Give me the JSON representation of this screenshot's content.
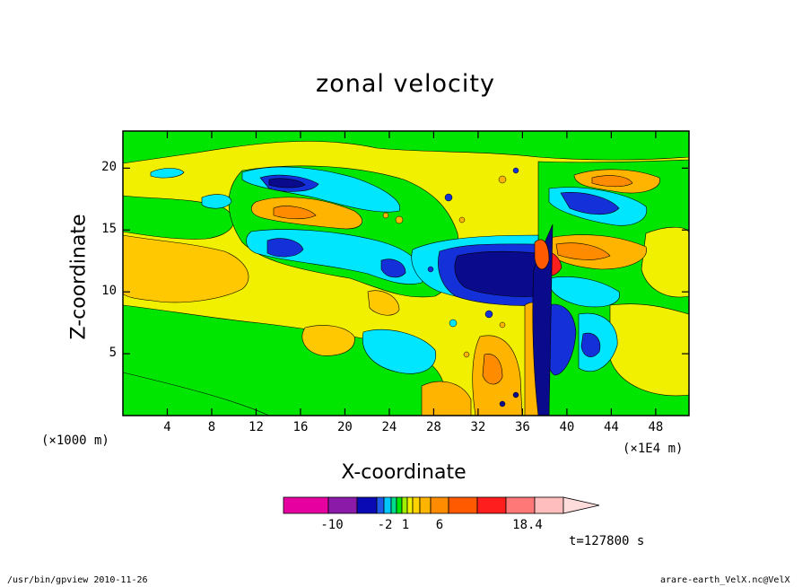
{
  "chart_data": {
    "type": "heatmap",
    "title": "zonal velocity",
    "xlabel": "X-coordinate",
    "ylabel": "Z-coordinate",
    "x_unit_left": "(×1000 m)",
    "x_unit_right": "(×1E4 m)",
    "x_ticks": [
      "4",
      "8",
      "12",
      "16",
      "20",
      "24",
      "28",
      "32",
      "36",
      "40",
      "44",
      "48"
    ],
    "x_tick_values": [
      4,
      8,
      12,
      16,
      20,
      24,
      28,
      32,
      36,
      40,
      44,
      48
    ],
    "xlim": [
      0,
      51
    ],
    "y_ticks": [
      "5",
      "10",
      "15",
      "20"
    ],
    "y_tick_values": [
      5,
      10,
      15,
      20
    ],
    "ylim": [
      0,
      23
    ],
    "colorbar": {
      "labels": [
        "-10",
        "-2",
        "1",
        "6",
        "18.4"
      ],
      "label_values": [
        -10,
        -2,
        1,
        6,
        18.4
      ],
      "colors": [
        "#e600a0",
        "#8c1aa8",
        "#0a0ab4",
        "#1e5ae6",
        "#00c8ff",
        "#00dc8c",
        "#00e600",
        "#a0f000",
        "#f0f000",
        "#ffd200",
        "#ffb400",
        "#ff8c00",
        "#ff5a00",
        "#ff1e1e",
        "#ff7878",
        "#ffbebe",
        "#ffdcdc"
      ]
    },
    "time_label": "t=127800 s"
  },
  "colors": {
    "background_level": "#f0f000",
    "green": "#00e600",
    "cyan": "#00e6ff",
    "blue": "#1430d8",
    "navy": "#0a0a8c",
    "orange": "#ffb400",
    "orange_dark": "#ff8c00",
    "red": "#ff1e1e"
  },
  "footer": {
    "left": "/usr/bin/gpview  2010-11-26",
    "right": "arare-earth_VelX.nc@VelX"
  }
}
